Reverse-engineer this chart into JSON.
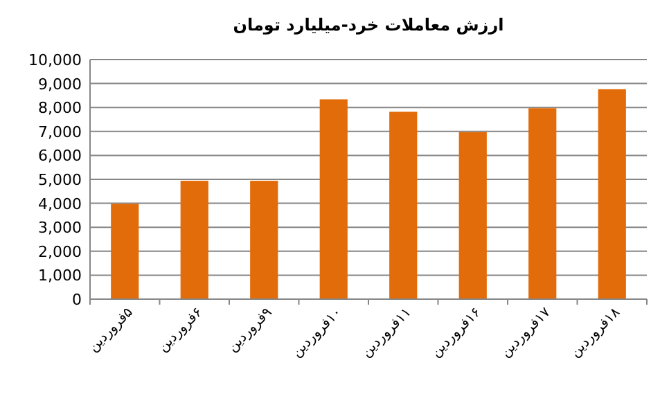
{
  "chart_data": {
    "type": "bar",
    "title": "ارزش معاملات خرد-میلیارد تومان",
    "categories": [
      "۵فروردین",
      "۶فروردین",
      "۹فروردین",
      "۱۰فروردین",
      "۱۱فروردین",
      "۱۶فروردین",
      "۱۷فروردین",
      "۱۸فروردین"
    ],
    "values": [
      3980,
      4940,
      4940,
      8340,
      7820,
      6970,
      7970,
      8760
    ],
    "color": "#e36c0a",
    "ylim": [
      0,
      10000
    ],
    "yticks": [
      {
        "value": 0,
        "label": "0"
      },
      {
        "value": 1000,
        "label": "1,000"
      },
      {
        "value": 2000,
        "label": "2,000"
      },
      {
        "value": 3000,
        "label": "3,000"
      },
      {
        "value": 4000,
        "label": "4,000"
      },
      {
        "value": 5000,
        "label": "5,000"
      },
      {
        "value": 6000,
        "label": "6,000"
      },
      {
        "value": 7000,
        "label": "7,000"
      },
      {
        "value": 8000,
        "label": "8,000"
      },
      {
        "value": 9000,
        "label": "9,000"
      },
      {
        "value": 10000,
        "label": "10,000"
      }
    ],
    "grid": "y"
  }
}
